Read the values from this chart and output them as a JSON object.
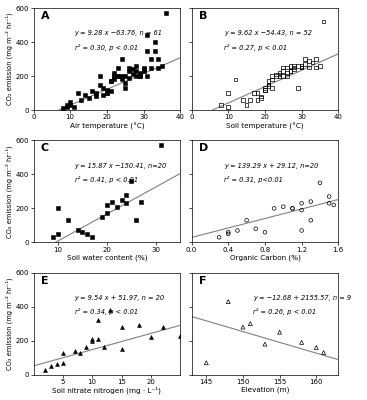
{
  "panels": [
    {
      "label": "A",
      "equation": "y = 9.28 x −63.76, n = 61",
      "stats": "r² = 0.30, p < 0.01",
      "xlabel": "Air temperature (°C)",
      "ylabel": "CO₂ emission (mg m⁻² hr⁻¹)",
      "xlim": [
        0,
        40
      ],
      "ylim": [
        0,
        600
      ],
      "xticks": [
        0,
        10,
        20,
        30,
        40
      ],
      "yticks": [
        0,
        200,
        400,
        600
      ],
      "slope": 9.28,
      "intercept": -63.76,
      "marker": "s",
      "marker_fill": "black",
      "x_data": [
        8,
        9,
        9,
        10,
        10,
        11,
        12,
        13,
        14,
        15,
        16,
        17,
        17,
        18,
        18,
        19,
        19,
        20,
        20,
        20,
        21,
        21,
        21,
        22,
        22,
        22,
        22,
        23,
        23,
        23,
        24,
        24,
        24,
        25,
        25,
        25,
        26,
        26,
        26,
        27,
        27,
        28,
        28,
        28,
        29,
        29,
        29,
        30,
        30,
        30,
        31,
        31,
        31,
        32,
        32,
        33,
        33,
        34,
        34,
        35,
        36
      ],
      "y_data": [
        10,
        30,
        20,
        50,
        30,
        20,
        100,
        60,
        90,
        70,
        110,
        80,
        100,
        200,
        150,
        90,
        130,
        100,
        100,
        120,
        170,
        170,
        110,
        200,
        200,
        180,
        220,
        250,
        200,
        200,
        300,
        200,
        180,
        130,
        160,
        200,
        250,
        230,
        190,
        240,
        210,
        230,
        260,
        200,
        220,
        200,
        200,
        240,
        250,
        230,
        440,
        350,
        200,
        250,
        300,
        350,
        400,
        300,
        250,
        260,
        570
      ]
    },
    {
      "label": "B",
      "equation": "y = 9.62 x −54.43, n = 52",
      "stats": "r² = 0.27, p < 0.01",
      "xlabel": "Soil temperature (°C)",
      "ylabel": "CO₂ emission (mg m⁻² hr⁻¹)",
      "xlim": [
        0,
        40
      ],
      "ylim": [
        0,
        600
      ],
      "xticks": [
        0,
        10,
        20,
        30,
        40
      ],
      "yticks": [
        0,
        200,
        400,
        600
      ],
      "slope": 9.62,
      "intercept": -54.43,
      "marker": "s",
      "marker_fill": "none",
      "x_data": [
        8,
        10,
        10,
        12,
        14,
        15,
        16,
        17,
        18,
        18,
        19,
        19,
        20,
        20,
        20,
        21,
        21,
        21,
        22,
        22,
        22,
        23,
        23,
        24,
        24,
        24,
        25,
        25,
        25,
        26,
        26,
        26,
        27,
        27,
        27,
        28,
        28,
        28,
        29,
        29,
        30,
        30,
        30,
        31,
        31,
        32,
        32,
        33,
        34,
        34,
        35,
        36
      ],
      "y_data": [
        30,
        100,
        20,
        180,
        60,
        30,
        60,
        100,
        60,
        100,
        70,
        80,
        120,
        120,
        130,
        150,
        140,
        170,
        130,
        180,
        200,
        200,
        210,
        220,
        200,
        210,
        200,
        250,
        230,
        200,
        220,
        250,
        260,
        230,
        230,
        250,
        260,
        240,
        130,
        260,
        260,
        250,
        250,
        300,
        270,
        250,
        290,
        280,
        250,
        300,
        260,
        520
      ]
    },
    {
      "label": "C",
      "equation": "y = 15.87 x −150.41, n=20",
      "stats": "r² = 0.41, p < 0.01",
      "xlabel": "Soil water content (%)",
      "ylabel": "CO₂ emission (mg m⁻² hr⁻¹)",
      "xlim": [
        5,
        35
      ],
      "ylim": [
        0,
        600
      ],
      "xticks": [
        10,
        20,
        30
      ],
      "yticks": [
        0,
        200,
        400,
        600
      ],
      "slope": 15.87,
      "intercept": -150.41,
      "marker": "s",
      "marker_fill": "black",
      "x_data": [
        9,
        10,
        10,
        12,
        14,
        15,
        16,
        17,
        19,
        20,
        20,
        21,
        22,
        23,
        24,
        24,
        25,
        26,
        27,
        31
      ],
      "y_data": [
        30,
        50,
        200,
        130,
        70,
        60,
        50,
        30,
        150,
        170,
        220,
        240,
        210,
        250,
        280,
        230,
        360,
        130,
        240,
        570
      ]
    },
    {
      "label": "D",
      "equation": "y = 139.29 x + 29.12, n=20",
      "stats": "r² = 0.31, p<0.01",
      "xlabel": "Organic Carbon (%)",
      "ylabel": "CO₂ emission (mg m⁻² hr⁻¹)",
      "xlim": [
        0.0,
        1.6
      ],
      "ylim": [
        0,
        600
      ],
      "xticks": [
        0.0,
        0.4,
        0.8,
        1.2,
        1.6
      ],
      "yticks": [
        0,
        200,
        400,
        600
      ],
      "slope": 139.29,
      "intercept": 29.12,
      "marker": "o",
      "marker_fill": "none",
      "x_data": [
        0.3,
        0.4,
        0.4,
        0.5,
        0.6,
        0.7,
        0.8,
        0.9,
        1.0,
        1.1,
        1.1,
        1.2,
        1.2,
        1.2,
        1.3,
        1.3,
        1.4,
        1.5,
        1.5,
        1.55
      ],
      "y_data": [
        30,
        50,
        60,
        70,
        130,
        80,
        60,
        200,
        210,
        200,
        200,
        190,
        230,
        70,
        240,
        130,
        350,
        230,
        270,
        220
      ]
    },
    {
      "label": "E",
      "equation": "y = 9.54 x + 51.97, n = 20",
      "stats": "r² = 0.34, p < 0.01",
      "xlabel": "Soil nitrate nitrogen (mg · L⁻¹)",
      "ylabel": "CO₂ emission (mg m⁻² hr⁻¹)",
      "xlim": [
        0,
        25
      ],
      "ylim": [
        0,
        600
      ],
      "xticks": [
        5,
        10,
        15,
        20
      ],
      "yticks": [
        0,
        200,
        400,
        600
      ],
      "slope": 9.54,
      "intercept": 51.97,
      "marker": "^",
      "marker_fill": "black",
      "x_data": [
        2,
        3,
        4,
        5,
        5,
        7,
        8,
        9,
        10,
        10,
        11,
        11,
        12,
        13,
        15,
        15,
        18,
        20,
        22,
        25
      ],
      "y_data": [
        30,
        50,
        60,
        130,
        70,
        140,
        130,
        160,
        210,
        200,
        320,
        210,
        160,
        380,
        280,
        150,
        290,
        220,
        280,
        230
      ]
    },
    {
      "label": "F",
      "equation": "y = −12.68 + 2155.57, n = 9",
      "stats": "r² = 0.26, p < 0.01",
      "xlabel": "Elevation (m)",
      "ylabel": "CO₂ emission (mg m⁻² hr⁻¹)",
      "xlim": [
        143,
        163
      ],
      "ylim": [
        0,
        600
      ],
      "xticks": [
        145,
        150,
        155,
        160
      ],
      "yticks": [
        0,
        200,
        400,
        600
      ],
      "slope": -12.68,
      "intercept": 2155.57,
      "marker": "^",
      "marker_fill": "none",
      "x_data": [
        145,
        148,
        150,
        151,
        153,
        155,
        158,
        160,
        161
      ],
      "y_data": [
        70,
        430,
        280,
        300,
        180,
        250,
        190,
        160,
        130
      ]
    }
  ],
  "figure_bg": "white",
  "text_color": "black",
  "eq_positions": [
    [
      0.28,
      0.78
    ],
    [
      0.22,
      0.78
    ],
    [
      0.28,
      0.78
    ],
    [
      0.22,
      0.78
    ],
    [
      0.28,
      0.78
    ],
    [
      0.42,
      0.78
    ]
  ]
}
